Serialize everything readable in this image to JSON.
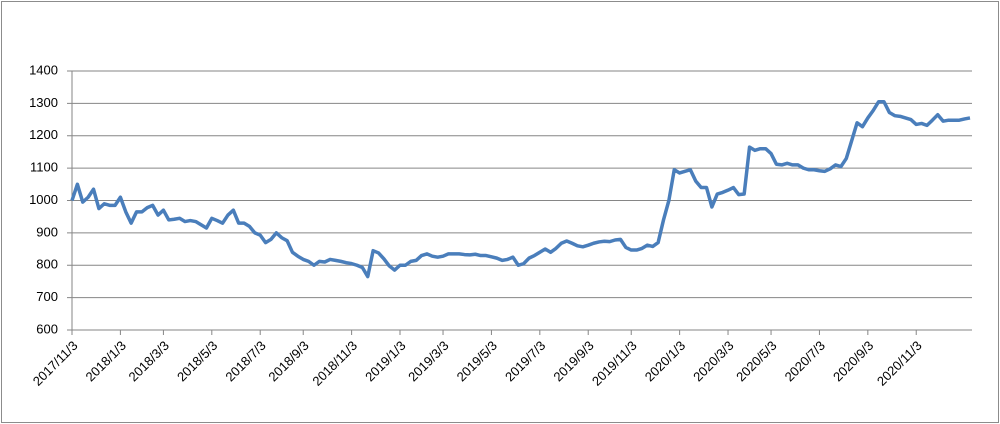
{
  "chart_data": {
    "type": "line",
    "categories": [
      "2017/11/3",
      null,
      null,
      null,
      null,
      null,
      null,
      null,
      null,
      "2018/1/3",
      null,
      null,
      null,
      null,
      null,
      null,
      null,
      "2018/3/3",
      null,
      null,
      null,
      null,
      null,
      null,
      null,
      null,
      "2018/5/3",
      null,
      null,
      null,
      null,
      null,
      null,
      null,
      null,
      "2018/7/3",
      null,
      null,
      null,
      null,
      null,
      null,
      null,
      "2018/9/3",
      null,
      null,
      null,
      null,
      null,
      null,
      null,
      null,
      "2018/11/3",
      null,
      null,
      null,
      null,
      null,
      null,
      null,
      null,
      "2019/1/3",
      null,
      null,
      null,
      null,
      null,
      null,
      null,
      "2019/3/3",
      null,
      null,
      null,
      null,
      null,
      null,
      null,
      null,
      "2019/5/3",
      null,
      null,
      null,
      null,
      null,
      null,
      null,
      null,
      "2019/7/3",
      null,
      null,
      null,
      null,
      null,
      null,
      null,
      null,
      "2019/9/3",
      null,
      null,
      null,
      null,
      null,
      null,
      null,
      "2019/11/3",
      null,
      null,
      null,
      null,
      null,
      null,
      null,
      null,
      "2020/1/3",
      null,
      null,
      null,
      null,
      null,
      null,
      null,
      null,
      "2020/3/3",
      null,
      null,
      null,
      null,
      null,
      null,
      null,
      "2020/5/3",
      null,
      null,
      null,
      null,
      null,
      null,
      null,
      null,
      "2020/7/3",
      null,
      null,
      null,
      null,
      null,
      null,
      null,
      null,
      "2020/9/3",
      null,
      null,
      null,
      null,
      null,
      null,
      null,
      null,
      "2020/11/3",
      null,
      null,
      null,
      null,
      null,
      null,
      null,
      null,
      null,
      null
    ],
    "series": [
      {
        "color": "#4a7ebb",
        "values": [
          1000,
          1050,
          995,
          1010,
          1035,
          975,
          990,
          985,
          985,
          1010,
          965,
          930,
          965,
          965,
          978,
          985,
          955,
          970,
          940,
          942,
          945,
          935,
          938,
          935,
          925,
          915,
          945,
          938,
          930,
          955,
          970,
          930,
          930,
          920,
          900,
          893,
          870,
          880,
          900,
          885,
          876,
          840,
          828,
          818,
          812,
          800,
          812,
          810,
          818,
          815,
          812,
          808,
          805,
          800,
          793,
          765,
          845,
          838,
          820,
          798,
          785,
          800,
          800,
          812,
          815,
          830,
          835,
          828,
          825,
          828,
          835,
          835,
          835,
          833,
          832,
          834,
          830,
          830,
          826,
          822,
          815,
          818,
          825,
          800,
          805,
          822,
          830,
          840,
          850,
          840,
          852,
          868,
          875,
          868,
          860,
          857,
          862,
          868,
          872,
          874,
          873,
          878,
          880,
          855,
          847,
          847,
          852,
          862,
          858,
          870,
          940,
          1000,
          1095,
          1085,
          1090,
          1095,
          1060,
          1040,
          1040,
          980,
          1020,
          1025,
          1032,
          1040,
          1018,
          1020,
          1165,
          1155,
          1160,
          1160,
          1145,
          1112,
          1110,
          1115,
          1110,
          1110,
          1100,
          1095,
          1095,
          1092,
          1090,
          1098,
          1110,
          1105,
          1130,
          1185,
          1240,
          1228,
          1255,
          1278,
          1305,
          1305,
          1272,
          1262,
          1260,
          1255,
          1250,
          1235,
          1238,
          1232,
          1248,
          1265,
          1245,
          1248,
          1248,
          1248,
          1252,
          1255
        ]
      }
    ],
    "ylim": [
      600,
      1400
    ],
    "yticks": [
      600,
      700,
      800,
      900,
      1000,
      1100,
      1200,
      1300,
      1400
    ],
    "grid": true
  }
}
